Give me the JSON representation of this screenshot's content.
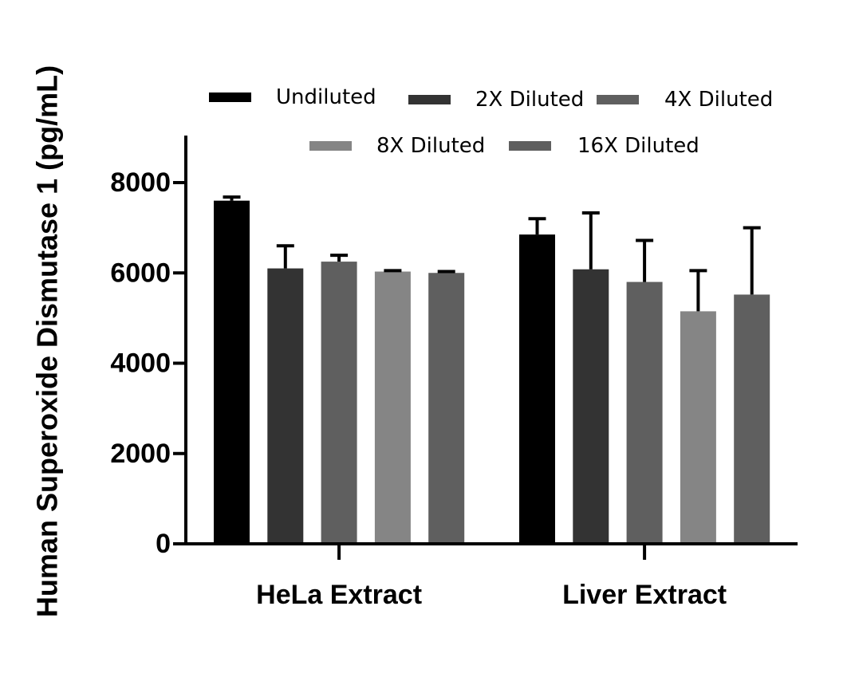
{
  "chart_data": {
    "type": "bar",
    "title": "",
    "xlabel": "",
    "ylabel": "Human Superoxide Dismutase 1 (pg/mL)",
    "ylim": [
      0,
      9000
    ],
    "yticks": [
      0,
      2000,
      4000,
      6000,
      8000
    ],
    "ytick_labels": [
      "0",
      "2000",
      "4000",
      "6000",
      "8000"
    ],
    "categories": [
      "HeLa Extract",
      "Liver Extract"
    ],
    "grid": false,
    "legend_position": "top",
    "series": [
      {
        "name": "Undiluted",
        "color": "#000000",
        "values": [
          7600,
          6850
        ],
        "errors": [
          80,
          350
        ]
      },
      {
        "name": "2X Diluted",
        "color": "#333333",
        "values": [
          6100,
          6080
        ],
        "errors": [
          500,
          1250
        ]
      },
      {
        "name": "4X Diluted",
        "color": "#5f5f5f",
        "values": [
          6250,
          5800
        ],
        "errors": [
          140,
          920
        ]
      },
      {
        "name": "8X Diluted",
        "color": "#858585",
        "values": [
          6030,
          5150
        ],
        "errors": [
          20,
          900
        ]
      },
      {
        "name": "16X Diluted",
        "color": "#5f5f5f",
        "values": [
          6000,
          5520
        ],
        "errors": [
          30,
          1480
        ]
      }
    ]
  }
}
